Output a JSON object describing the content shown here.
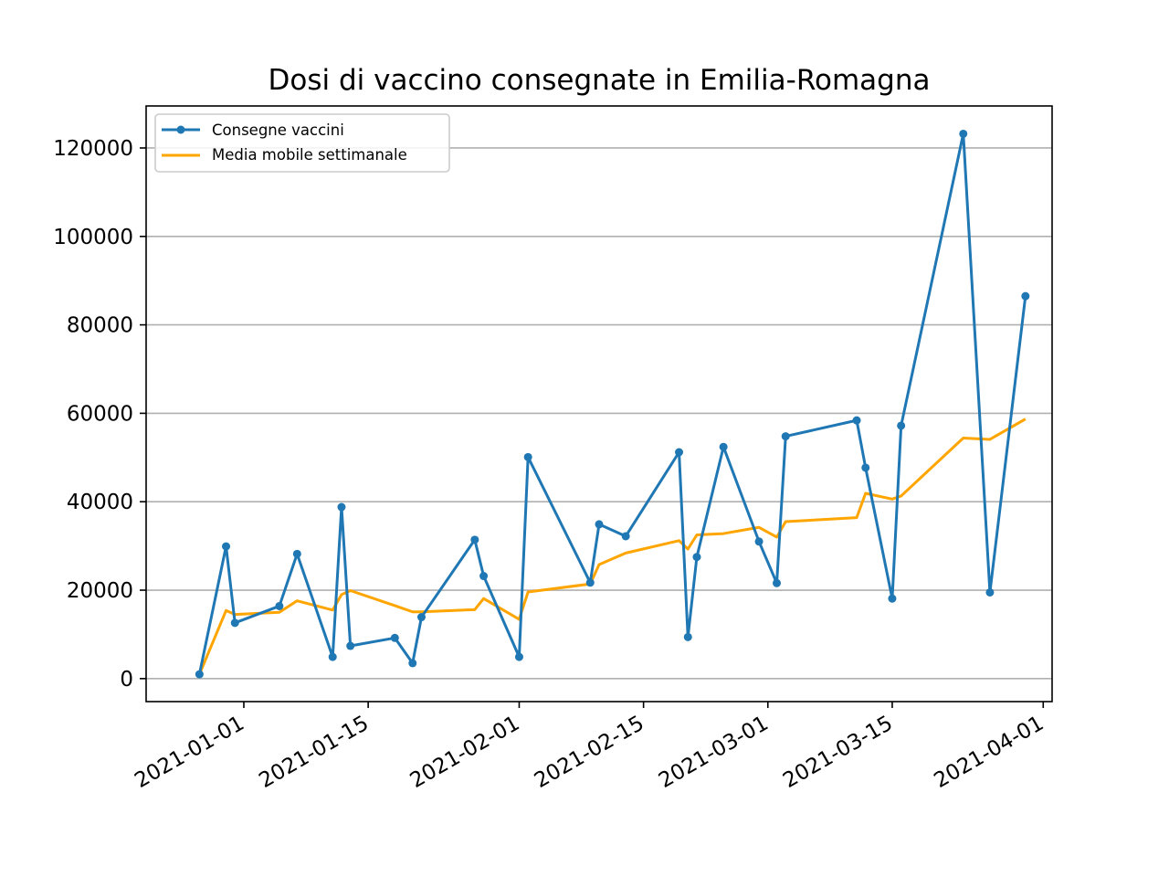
{
  "chart_data": {
    "type": "line",
    "title": "Dosi di vaccino consegnate in Emilia-Romagna",
    "xlabel": "",
    "ylabel": "",
    "x_axis_type": "date",
    "x_ticks": [
      "2021-01-01",
      "2021-01-15",
      "2021-02-01",
      "2021-02-15",
      "2021-03-01",
      "2021-03-15",
      "2021-04-01"
    ],
    "y_ticks": [
      0,
      20000,
      40000,
      60000,
      80000,
      100000,
      120000
    ],
    "ylim": [
      -5200,
      129500
    ],
    "xlim": [
      "2020-12-21",
      "2021-04-02"
    ],
    "grid": "y",
    "legend_position": "upper left",
    "colors": {
      "series_1": "#1f77b4",
      "series_2": "#ffa500"
    },
    "series": [
      {
        "name": "Consegne vaccini",
        "marker": "circle",
        "points": [
          {
            "x": "2020-12-27",
            "y": 975
          },
          {
            "x": "2020-12-30",
            "y": 29900
          },
          {
            "x": "2020-12-31",
            "y": 12600
          },
          {
            "x": "2021-01-05",
            "y": 16400
          },
          {
            "x": "2021-01-07",
            "y": 28200
          },
          {
            "x": "2021-01-11",
            "y": 4900
          },
          {
            "x": "2021-01-12",
            "y": 38800
          },
          {
            "x": "2021-01-13",
            "y": 7400
          },
          {
            "x": "2021-01-18",
            "y": 9200
          },
          {
            "x": "2021-01-20",
            "y": 3500
          },
          {
            "x": "2021-01-21",
            "y": 13900
          },
          {
            "x": "2021-01-27",
            "y": 31400
          },
          {
            "x": "2021-01-28",
            "y": 23200
          },
          {
            "x": "2021-02-01",
            "y": 4900
          },
          {
            "x": "2021-02-02",
            "y": 50100
          },
          {
            "x": "2021-02-09",
            "y": 21700
          },
          {
            "x": "2021-02-10",
            "y": 34900
          },
          {
            "x": "2021-02-13",
            "y": 32200
          },
          {
            "x": "2021-02-19",
            "y": 51200
          },
          {
            "x": "2021-02-20",
            "y": 9400
          },
          {
            "x": "2021-02-21",
            "y": 27500
          },
          {
            "x": "2021-02-24",
            "y": 52400
          },
          {
            "x": "2021-02-28",
            "y": 31000
          },
          {
            "x": "2021-03-02",
            "y": 21600
          },
          {
            "x": "2021-03-03",
            "y": 54800
          },
          {
            "x": "2021-03-11",
            "y": 58400
          },
          {
            "x": "2021-03-12",
            "y": 47700
          },
          {
            "x": "2021-03-15",
            "y": 18100
          },
          {
            "x": "2021-03-16",
            "y": 57200
          },
          {
            "x": "2021-03-23",
            "y": 123200
          },
          {
            "x": "2021-03-26",
            "y": 19500
          },
          {
            "x": "2021-03-30",
            "y": 86500
          }
        ]
      },
      {
        "name": "Media mobile settimanale",
        "marker": "none",
        "points": [
          {
            "x": "2020-12-27",
            "y": 975
          },
          {
            "x": "2020-12-30",
            "y": 15400
          },
          {
            "x": "2020-12-31",
            "y": 14500
          },
          {
            "x": "2021-01-05",
            "y": 15000
          },
          {
            "x": "2021-01-07",
            "y": 17600
          },
          {
            "x": "2021-01-11",
            "y": 15500
          },
          {
            "x": "2021-01-12",
            "y": 19000
          },
          {
            "x": "2021-01-13",
            "y": 19900
          },
          {
            "x": "2021-01-18",
            "y": 16500
          },
          {
            "x": "2021-01-20",
            "y": 15100
          },
          {
            "x": "2021-01-21",
            "y": 15100
          },
          {
            "x": "2021-01-27",
            "y": 15600
          },
          {
            "x": "2021-01-28",
            "y": 18100
          },
          {
            "x": "2021-02-01",
            "y": 13400
          },
          {
            "x": "2021-02-02",
            "y": 19600
          },
          {
            "x": "2021-02-09",
            "y": 21400
          },
          {
            "x": "2021-02-10",
            "y": 25800
          },
          {
            "x": "2021-02-13",
            "y": 28400
          },
          {
            "x": "2021-02-19",
            "y": 31200
          },
          {
            "x": "2021-02-20",
            "y": 29300
          },
          {
            "x": "2021-02-21",
            "y": 32500
          },
          {
            "x": "2021-02-24",
            "y": 32800
          },
          {
            "x": "2021-02-28",
            "y": 34200
          },
          {
            "x": "2021-03-02",
            "y": 32000
          },
          {
            "x": "2021-03-03",
            "y": 35500
          },
          {
            "x": "2021-03-11",
            "y": 36400
          },
          {
            "x": "2021-03-12",
            "y": 41900
          },
          {
            "x": "2021-03-15",
            "y": 40600
          },
          {
            "x": "2021-03-16",
            "y": 41300
          },
          {
            "x": "2021-03-23",
            "y": 54400
          },
          {
            "x": "2021-03-26",
            "y": 54100
          },
          {
            "x": "2021-03-30",
            "y": 58700
          }
        ]
      }
    ]
  }
}
